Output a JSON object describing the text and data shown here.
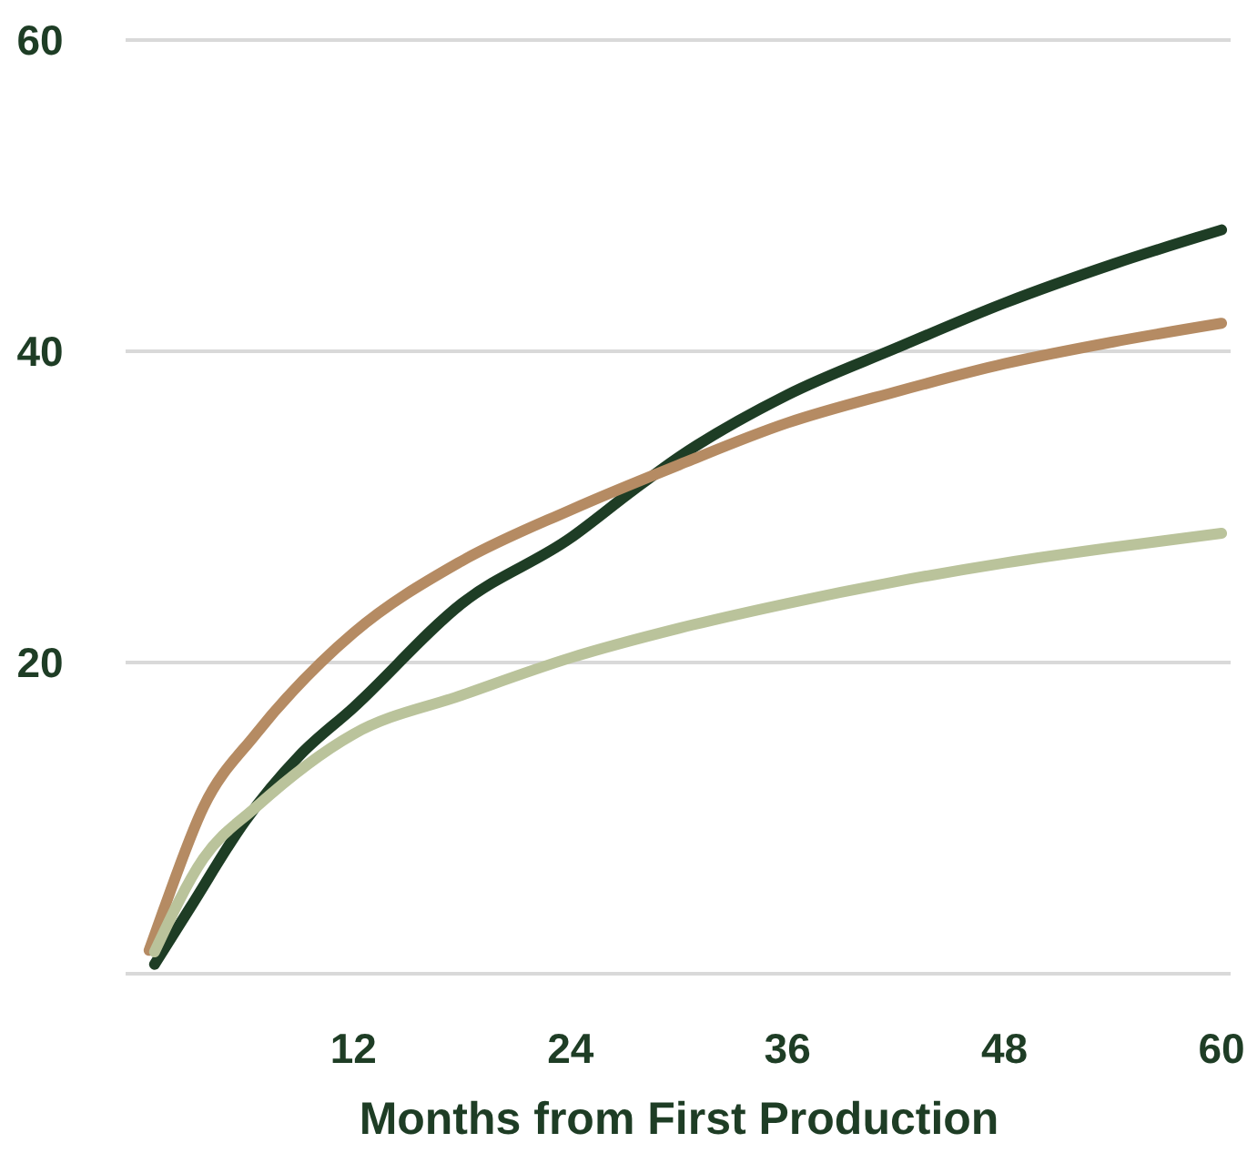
{
  "chart_data": {
    "type": "line",
    "xlabel": "Months from First Production",
    "xlim": [
      -0.6,
      60.5
    ],
    "xticks": [
      12,
      24,
      36,
      48,
      60
    ],
    "ylim": [
      0,
      60
    ],
    "yticks": [
      {
        "value": 0,
        "label": null
      },
      20,
      40,
      60
    ],
    "grid": "y",
    "line_style": "solid",
    "marker": "none",
    "series": [
      {
        "color": "#1e3d25",
        "x": [
          1,
          3,
          6,
          9,
          12,
          18,
          24,
          27.5,
          30,
          36,
          42,
          48,
          54,
          60
        ],
        "values": [
          0.6,
          4.3,
          9.8,
          14.0,
          17.1,
          23.8,
          28.0,
          31.1,
          33.2,
          37.2,
          40.2,
          43.1,
          45.6,
          47.8
        ]
      },
      {
        "color": "#b58b63",
        "x": [
          0.7,
          1.5,
          3.7,
          6.6,
          10.2,
          12,
          17.8,
          24,
          30,
          36,
          42,
          48,
          54,
          60
        ],
        "values": [
          1.5,
          4.1,
          10.7,
          15.4,
          20.0,
          21.9,
          26.4,
          29.8,
          32.7,
          35.4,
          37.4,
          39.2,
          40.6,
          41.8
        ]
      },
      {
        "color": "#bac39b",
        "x": [
          1,
          3.7,
          6.6,
          12,
          18,
          24,
          30,
          36,
          42,
          48,
          54,
          60
        ],
        "values": [
          1.4,
          7.4,
          10.7,
          15.4,
          17.9,
          20.3,
          22.2,
          23.8,
          25.2,
          26.4,
          27.4,
          28.3
        ]
      }
    ]
  }
}
